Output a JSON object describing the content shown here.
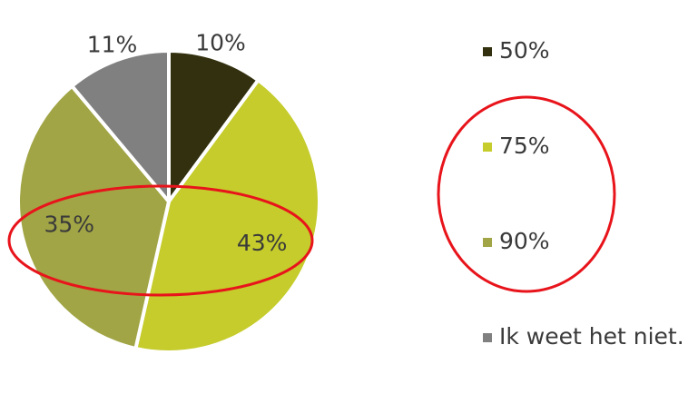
{
  "chart_data": {
    "type": "pie",
    "categories": [
      "50%",
      "75%",
      "90%",
      "Ik weet het niet."
    ],
    "values": [
      10,
      43,
      35,
      11
    ],
    "value_labels": [
      "10%",
      "43%",
      "35%",
      "11%"
    ],
    "colors": [
      "#33300f",
      "#c5cc2b",
      "#a1a545",
      "#808080"
    ]
  }
}
